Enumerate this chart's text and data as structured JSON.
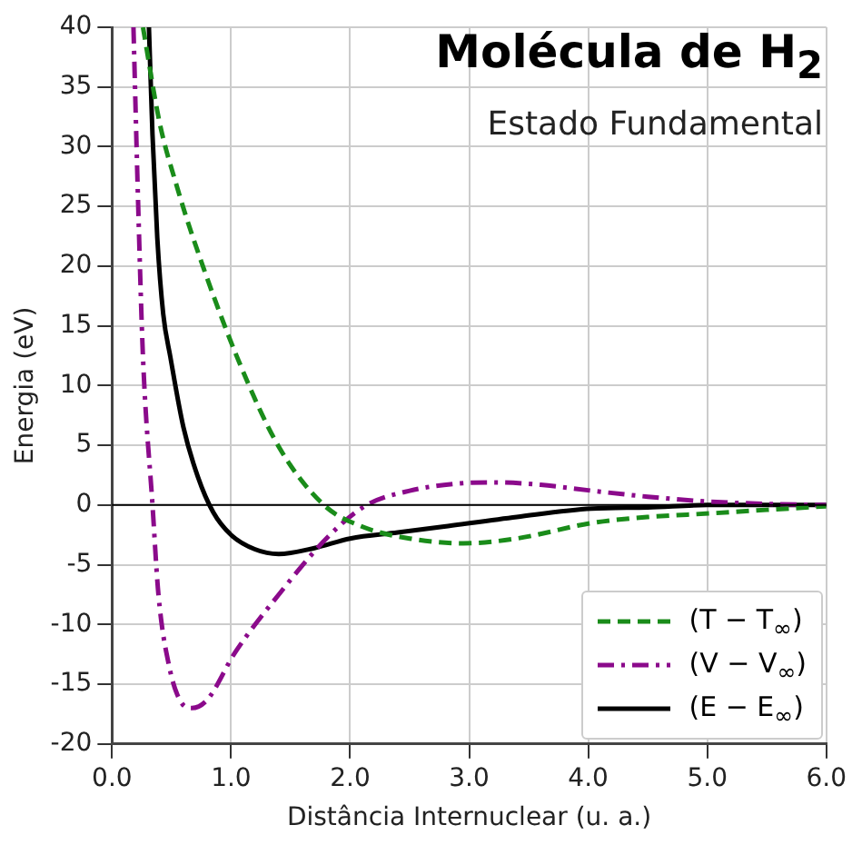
{
  "chart_data": {
    "type": "line",
    "title": "Molécula de H$_{2}$",
    "subtitle": "Estado Fundamental",
    "xlabel": "Distância Internuclear (u. a.)",
    "ylabel": "Energia (eV)",
    "xlim": [
      0,
      6
    ],
    "ylim": [
      -20,
      40
    ],
    "xticks": [
      {
        "value": 0,
        "label": "0.0"
      },
      {
        "value": 1,
        "label": "1.0"
      },
      {
        "value": 2,
        "label": "2.0"
      },
      {
        "value": 3,
        "label": "3.0"
      },
      {
        "value": 4,
        "label": "4.0"
      },
      {
        "value": 5,
        "label": "5.0"
      },
      {
        "value": 6,
        "label": "6.0"
      }
    ],
    "yticks": [
      -20,
      -15,
      -10,
      -5,
      0,
      5,
      10,
      15,
      20,
      25,
      30,
      35,
      40
    ],
    "grid": true,
    "legend": "bottom right",
    "marker": "none",
    "ref_lines": [
      {
        "axis": "y",
        "value": 0,
        "color": "#000000"
      }
    ],
    "series": [
      {
        "name": "(T − T$_{∞}$)",
        "color": "#1a8c1a",
        "line_style": "dashed",
        "x": [
          0.26,
          0.4,
          0.55,
          0.68,
          1.05,
          1.4,
          1.78,
          2.1,
          2.5,
          2.95,
          3.4,
          4.03,
          4.5,
          5.02,
          5.5,
          6.0
        ],
        "values": [
          40,
          32,
          26.5,
          22.4,
          12.4,
          4.9,
          0,
          -1.8,
          -2.8,
          -3.2,
          -2.8,
          -1.5,
          -1.0,
          -0.7,
          -0.4,
          -0.1
        ]
      },
      {
        "name": "(V − V$_{∞}$)",
        "color": "#8b0a8b",
        "line_style": "dashdot",
        "x": [
          0.18,
          0.22,
          0.26,
          0.34,
          0.39,
          0.48,
          0.58,
          0.67,
          0.8,
          1.03,
          1.4,
          1.83,
          2.14,
          2.5,
          2.9,
          3.2,
          3.6,
          4.03,
          4.5,
          5.0,
          5.5,
          6.0
        ],
        "values": [
          40,
          25,
          12.4,
          0,
          -7.5,
          -13.5,
          -16.5,
          -17,
          -16.3,
          -12.4,
          -7.5,
          -2.5,
          0,
          1.2,
          1.8,
          1.9,
          1.7,
          1.2,
          0.7,
          0.3,
          0.1,
          0
        ]
      },
      {
        "name": "(E − E$_{∞}$)",
        "color": "#000000",
        "line_style": "solid",
        "x": [
          0.31,
          0.34,
          0.38,
          0.43,
          0.49,
          0.6,
          0.72,
          0.85,
          1.0,
          1.2,
          1.4,
          1.7,
          2.0,
          2.4,
          2.79,
          3.4,
          4.03,
          4.5,
          5.0,
          5.5,
          6.0
        ],
        "values": [
          40,
          31,
          22.4,
          16,
          12.4,
          6.5,
          2.4,
          -0.6,
          -2.5,
          -3.7,
          -4.1,
          -3.6,
          -2.8,
          -2.3,
          -1.8,
          -1.0,
          -0.3,
          -0.2,
          0,
          0,
          0
        ]
      }
    ]
  }
}
